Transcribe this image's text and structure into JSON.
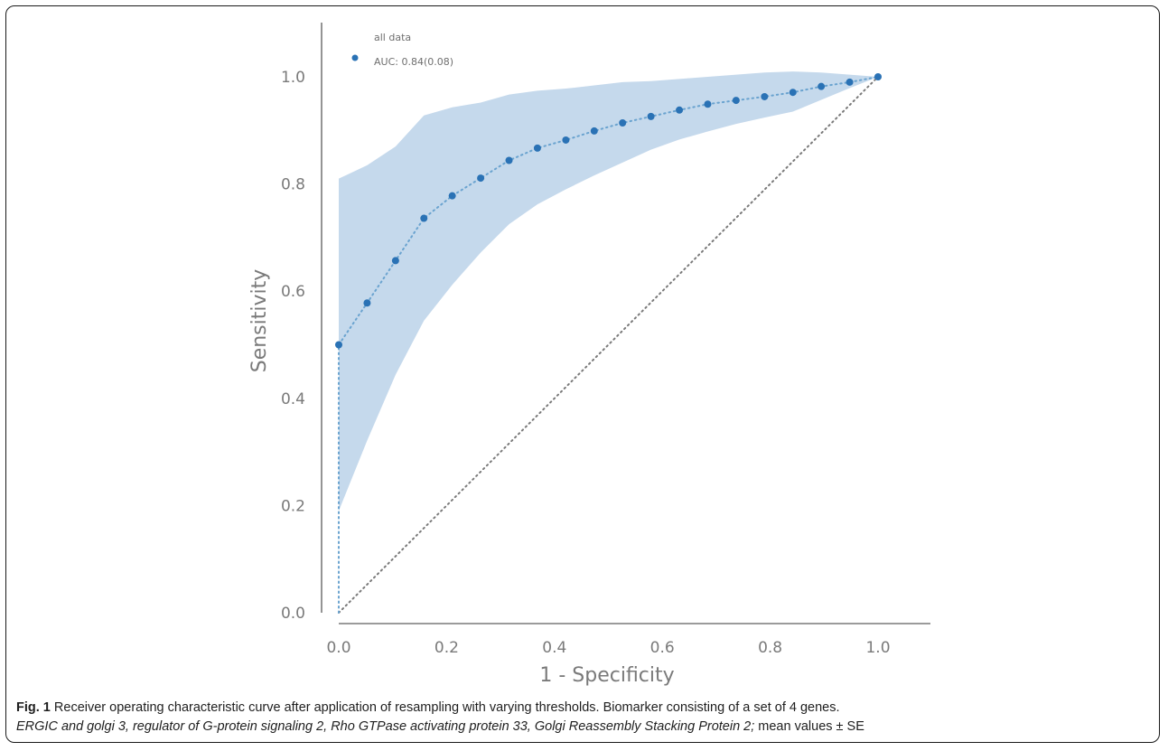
{
  "chart_data": {
    "type": "line",
    "xlabel": "1 - Specificity",
    "ylabel": "Sensitivity",
    "xlim": [
      0.0,
      1.1
    ],
    "ylim": [
      0.0,
      1.1
    ],
    "xticks": [
      "0.0",
      "0.2",
      "0.4",
      "0.6",
      "0.8",
      "1.0"
    ],
    "yticks": [
      "0.0",
      "0.2",
      "0.4",
      "0.6",
      "0.8",
      "1.0"
    ],
    "grid": false,
    "legend_position": "top-left",
    "legend": {
      "title": "all data",
      "entries": [
        "AUC: 0.84(0.08)"
      ]
    },
    "series": [
      {
        "name": "AUC: 0.84(0.08)",
        "color": "#2a72b5",
        "x": [
          0.0,
          0.0,
          0.0526,
          0.1053,
          0.1579,
          0.2105,
          0.2632,
          0.3158,
          0.3684,
          0.4211,
          0.4737,
          0.5263,
          0.5789,
          0.6316,
          0.6842,
          0.7368,
          0.7895,
          0.8421,
          0.8947,
          0.9474,
          1.0
        ],
        "y": [
          0.0,
          0.5,
          0.578,
          0.657,
          0.736,
          0.778,
          0.811,
          0.844,
          0.867,
          0.882,
          0.899,
          0.914,
          0.926,
          0.938,
          0.949,
          0.956,
          0.963,
          0.971,
          0.982,
          0.99,
          1.0
        ],
        "upper": [
          0.0,
          0.81,
          0.835,
          0.87,
          0.928,
          0.943,
          0.952,
          0.967,
          0.974,
          0.978,
          0.984,
          0.99,
          0.992,
          0.996,
          1.0,
          1.004,
          1.008,
          1.01,
          1.008,
          1.004,
          1.0
        ],
        "lower": [
          0.0,
          0.19,
          0.321,
          0.444,
          0.545,
          0.612,
          0.672,
          0.725,
          0.762,
          0.79,
          0.816,
          0.84,
          0.864,
          0.883,
          0.898,
          0.912,
          0.924,
          0.935,
          0.957,
          0.979,
          1.0
        ]
      }
    ],
    "reference_line": {
      "x": [
        0.0,
        1.0
      ],
      "y": [
        0.0,
        1.0
      ],
      "style": "dotted",
      "color": "#7a7a7a"
    },
    "colors": {
      "band": "#c5d9ec",
      "line": "#6aa3cf",
      "marker": "#2a72b5",
      "axis": "#7a7a7a"
    }
  },
  "caption": {
    "label": "Fig. 1",
    "text1": " Receiver operating characteristic curve after application of resampling with varying thresholds. Biomarker consisting of a set of 4 genes.",
    "italic": "ERGIC and golgi 3, regulator of G-protein signaling 2, Rho GTPase activating protein 33, Golgi Reassembly Stacking Protein 2;",
    "text2": " mean values ± SE"
  }
}
